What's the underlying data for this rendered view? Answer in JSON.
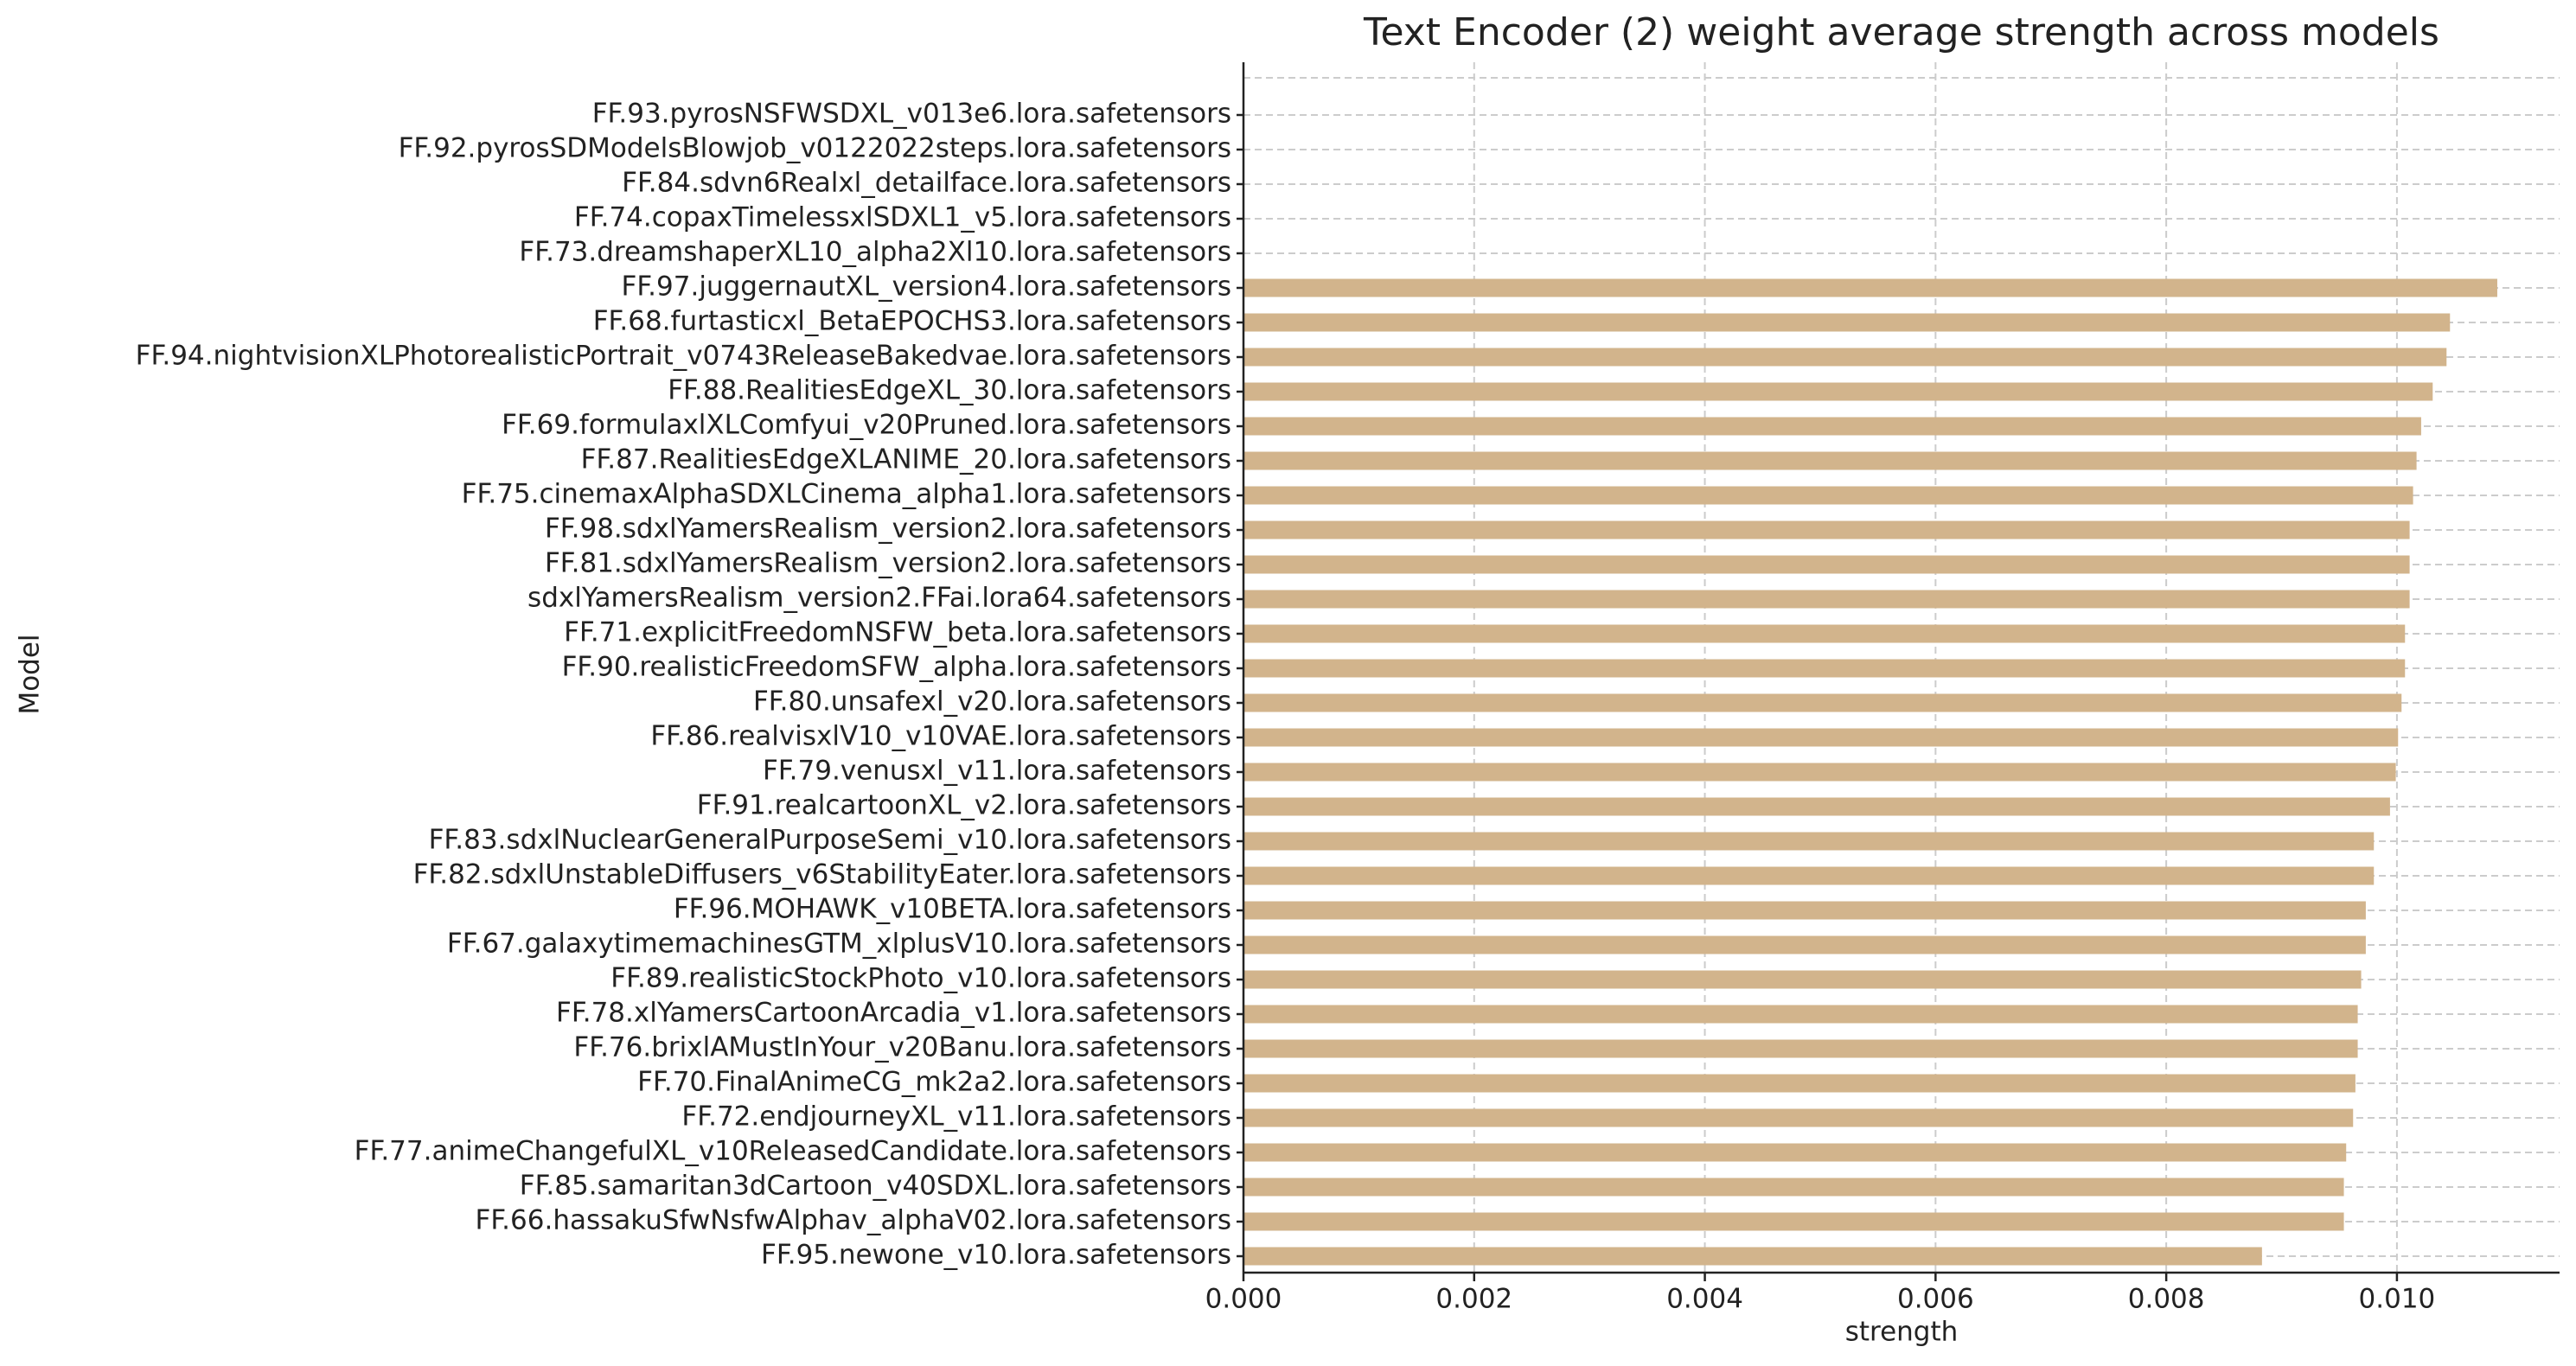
{
  "chart_data": {
    "type": "barh",
    "title": "Text Encoder (2) weight average strength across models",
    "x_label": "strength",
    "y_label": "Model",
    "categories": [
      "FF.93.pyrosNSFWSDXL_v013e6.lora.safetensors",
      "FF.92.pyrosSDModelsBlowjob_v0122022steps.lora.safetensors",
      "FF.84.sdvn6Realxl_detailface.lora.safetensors",
      "FF.74.copaxTimelessxlSDXL1_v5.lora.safetensors",
      "FF.73.dreamshaperXL10_alpha2Xl10.lora.safetensors",
      "FF.97.juggernautXL_version4.lora.safetensors",
      "FF.68.furtasticxl_BetaEPOCHS3.lora.safetensors",
      "FF.94.nightvisionXLPhotorealisticPortrait_v0743ReleaseBakedvae.lora.safetensors",
      "FF.88.RealitiesEdgeXL_30.lora.safetensors",
      "FF.69.formulaxlXLComfyui_v20Pruned.lora.safetensors",
      "FF.87.RealitiesEdgeXLANIME_20.lora.safetensors",
      "FF.75.cinemaxAlphaSDXLCinema_alpha1.lora.safetensors",
      "FF.98.sdxlYamersRealism_version2.lora.safetensors",
      "FF.81.sdxlYamersRealism_version2.lora.safetensors",
      "sdxlYamersRealism_version2.FFai.lora64.safetensors",
      "FF.71.explicitFreedomNSFW_beta.lora.safetensors",
      "FF.90.realisticFreedomSFW_alpha.lora.safetensors",
      "FF.80.unsafexl_v20.lora.safetensors",
      "FF.86.realvisxlV10_v10VAE.lora.safetensors",
      "FF.79.venusxl_v11.lora.safetensors",
      "FF.91.realcartoonXL_v2.lora.safetensors",
      "FF.83.sdxlNuclearGeneralPurposeSemi_v10.lora.safetensors",
      "FF.82.sdxlUnstableDiffusers_v6StabilityEater.lora.safetensors",
      "FF.96.MOHAWK_v10BETA.lora.safetensors",
      "FF.67.galaxytimemachinesGTM_xlplusV10.lora.safetensors",
      "FF.89.realisticStockPhoto_v10.lora.safetensors",
      "FF.78.xlYamersCartoonArcadia_v1.lora.safetensors",
      "FF.76.brixlAMustInYour_v20Banu.lora.safetensors",
      "FF.70.FinalAnimeCG_mk2a2.lora.safetensors",
      "FF.72.endjourneyXL_v11.lora.safetensors",
      "FF.77.animeChangefulXL_v10ReleasedCandidate.lora.safetensors",
      "FF.85.samaritan3dCartoon_v40SDXL.lora.safetensors",
      "FF.66.hassakuSfwNsfwAlphav_alphaV02.lora.safetensors",
      "FF.95.newone_v10.lora.safetensors"
    ],
    "values": [
      0,
      0,
      0,
      0,
      0,
      0.01087,
      0.01046,
      0.01043,
      0.01031,
      0.01021,
      0.01017,
      0.01014,
      0.01011,
      0.01011,
      0.01011,
      0.01007,
      0.01007,
      0.01004,
      0.01001,
      0.00999,
      0.00994,
      0.0098,
      0.0098,
      0.00973,
      0.00973,
      0.00969,
      0.00966,
      0.00966,
      0.00964,
      0.00962,
      0.00956,
      0.00954,
      0.00954,
      0.00883
    ],
    "color": "#d2b48c",
    "xlim": [
      0,
      0.01141
    ],
    "xticks": [
      {
        "value": 0,
        "label": "0.000"
      },
      {
        "value": 0.002,
        "label": "0.002"
      },
      {
        "value": 0.004,
        "label": "0.004"
      },
      {
        "value": 0.006,
        "label": "0.006"
      },
      {
        "value": 0.008,
        "label": "0.008"
      },
      {
        "value": 0.01,
        "label": "0.010"
      }
    ],
    "grid": true
  }
}
